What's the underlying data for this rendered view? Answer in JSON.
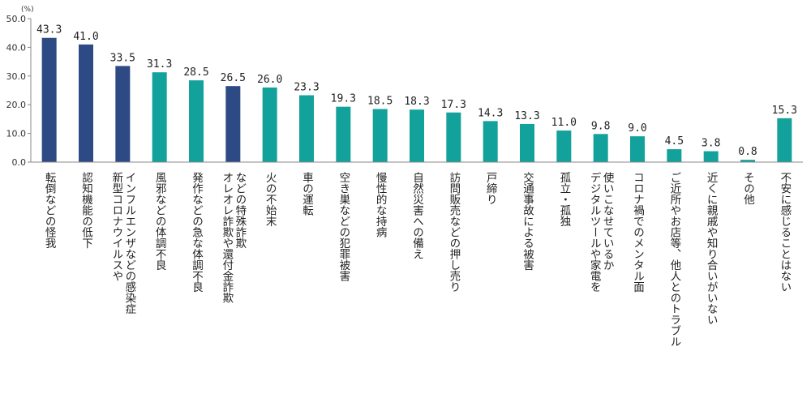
{
  "chart_data": {
    "type": "bar",
    "unit": "(%)",
    "ylim": [
      0,
      50
    ],
    "yticks": [
      "0.0",
      "10.0",
      "20.0",
      "30.0",
      "40.0",
      "50.0"
    ],
    "grid": false,
    "legend": "none",
    "categories": [
      "転倒などの怪我",
      "認知機能の低下",
      "新型コロナウイルスや\nインフルエンザなどの感染症",
      "風邪などの体調不良",
      "発作などの急な体調不良",
      "オレオレ詐欺や還付金詐欺\nなどの特殊詐欺",
      "火の不始末",
      "車の運転",
      "空き巣などの犯罪被害",
      "慢性的な持病",
      "自然災害への備え",
      "訪問販売などの押し売り",
      "戸締り",
      "交通事故による被害",
      "孤立・孤独",
      "デジタルツールや家電を\n使いこなせているか",
      "コロナ禍でのメンタル面",
      "ご近所やお店等、他人とのトラブル",
      "近くに親戚や知り合いがいない",
      "その他",
      "不安に感じることはない"
    ],
    "values": [
      43.3,
      41.0,
      33.5,
      31.3,
      28.5,
      26.5,
      26.0,
      23.3,
      19.3,
      18.5,
      18.3,
      17.3,
      14.3,
      13.3,
      11.0,
      9.8,
      9.0,
      4.5,
      3.8,
      0.8,
      15.3
    ],
    "value_labels": [
      "43.3",
      "41.0",
      "33.5",
      "31.3",
      "28.5",
      "26.5",
      "26.0",
      "23.3",
      "19.3",
      "18.5",
      "18.3",
      "17.3",
      "14.3",
      "13.3",
      "11.0",
      "9.8",
      "9.0",
      "4.5",
      "3.8",
      "0.8",
      "15.3"
    ],
    "highlighted_indices": [
      0,
      1,
      2,
      5
    ],
    "colors": {
      "highlight": "#2e4a84",
      "normal": "#12a19b",
      "axis": "#888888"
    }
  }
}
